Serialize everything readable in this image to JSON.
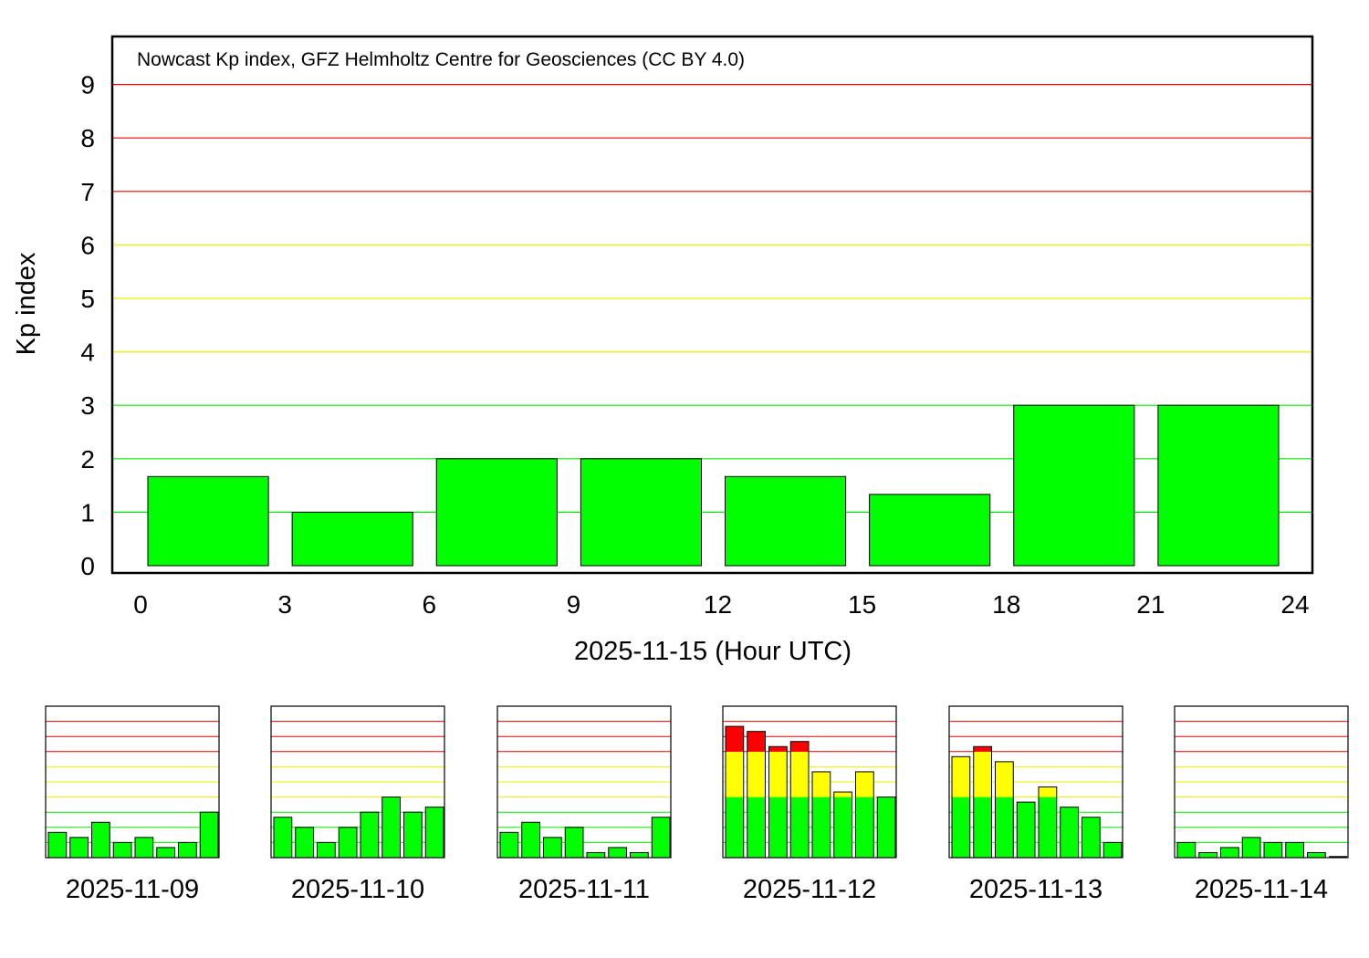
{
  "colors": {
    "quiet": "#00ff00",
    "active": "#ffff00",
    "storm": "#ff0000",
    "gridline_quiet": "#00ee00",
    "gridline_active": "#eeee00",
    "gridline_storm": "#ee0000",
    "axis": "#000000"
  },
  "thresholds": {
    "active_from": 4,
    "storm_from": 7
  },
  "chart_data": [
    {
      "type": "bar",
      "id": "main",
      "title": "Nowcast Kp index, GFZ Helmholtz Centre for Geosciences (CC BY 4.0)",
      "xlabel": "2025-11-15 (Hour UTC)",
      "ylabel": "Kp index",
      "xlim": [
        0,
        24
      ],
      "ylim": [
        0,
        10
      ],
      "xticks": [
        0,
        3,
        6,
        9,
        12,
        15,
        18,
        21,
        24
      ],
      "yticks": [
        0,
        1,
        2,
        3,
        4,
        5,
        6,
        7,
        8,
        9
      ],
      "bar_start_hours": [
        0,
        3,
        6,
        9,
        12,
        15,
        18,
        21
      ],
      "values": [
        1.667,
        1.0,
        2.0,
        2.0,
        1.667,
        1.333,
        3.0,
        3.0
      ],
      "grid": true
    },
    {
      "type": "bar",
      "id": "day-2025-11-09",
      "label": "2025-11-09",
      "ylim": [
        0,
        10
      ],
      "values": [
        1.667,
        1.333,
        2.333,
        1.0,
        1.333,
        0.667,
        1.0,
        3.0
      ]
    },
    {
      "type": "bar",
      "id": "day-2025-11-10",
      "label": "2025-11-10",
      "ylim": [
        0,
        10
      ],
      "values": [
        2.667,
        2.0,
        1.0,
        2.0,
        3.0,
        4.0,
        3.0,
        3.333
      ]
    },
    {
      "type": "bar",
      "id": "day-2025-11-11",
      "label": "2025-11-11",
      "ylim": [
        0,
        10
      ],
      "values": [
        1.667,
        2.333,
        1.333,
        2.0,
        0.333,
        0.667,
        0.333,
        2.667
      ]
    },
    {
      "type": "bar",
      "id": "day-2025-11-12",
      "label": "2025-11-12",
      "ylim": [
        0,
        10
      ],
      "values": [
        8.667,
        8.333,
        7.333,
        7.667,
        5.667,
        4.333,
        5.667,
        4.0
      ]
    },
    {
      "type": "bar",
      "id": "day-2025-11-13",
      "label": "2025-11-13",
      "ylim": [
        0,
        10
      ],
      "values": [
        6.667,
        7.333,
        6.333,
        3.667,
        4.667,
        3.333,
        2.667,
        1.0
      ]
    },
    {
      "type": "bar",
      "id": "day-2025-11-14",
      "label": "2025-11-14",
      "ylim": [
        0,
        10
      ],
      "values": [
        1.0,
        0.333,
        0.667,
        1.333,
        1.0,
        1.0,
        0.333,
        0.0
      ]
    }
  ]
}
